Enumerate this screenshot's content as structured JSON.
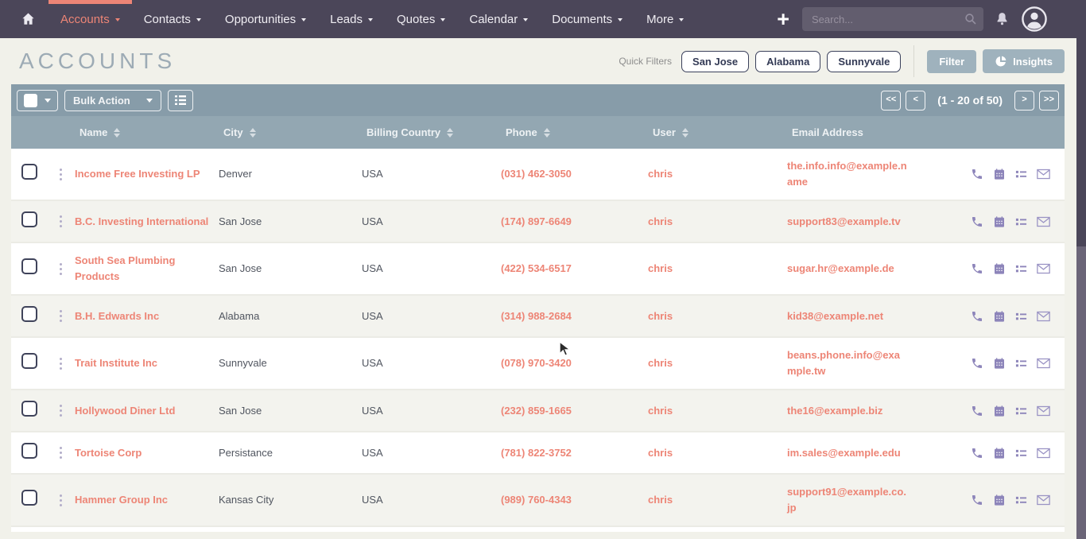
{
  "colors": {
    "accent": "#ed8576",
    "nav_bg": "#4b4659",
    "toolbar_bg": "#879ca9",
    "header_bg": "#93a7b2",
    "button_bg": "#9fb2bd",
    "icon_purple": "#8d85ba",
    "page_bg": "#f1f1ea",
    "row_alt": "#f3f3ee",
    "dark_text": "#50555f",
    "scroll_thumb": "#6b6578"
  },
  "nav": {
    "items": [
      {
        "label": "Accounts",
        "active": true
      },
      {
        "label": "Contacts",
        "active": false
      },
      {
        "label": "Opportunities",
        "active": false
      },
      {
        "label": "Leads",
        "active": false
      },
      {
        "label": "Quotes",
        "active": false
      },
      {
        "label": "Calendar",
        "active": false
      },
      {
        "label": "Documents",
        "active": false
      },
      {
        "label": "More",
        "active": false
      }
    ],
    "plus_label": "+",
    "search": {
      "placeholder": "Search..."
    },
    "icons": [
      "home-icon",
      "search-icon",
      "bell-icon",
      "user-avatar-icon"
    ]
  },
  "header": {
    "title": "ACCOUNTS",
    "quick_filters_label": "Quick Filters",
    "quick_filters": [
      "San Jose",
      "Alabama",
      "Sunnyvale"
    ],
    "filter_label": "Filter",
    "insights_label": "Insights",
    "insights_icon": "pie-chart-icon"
  },
  "toolbar": {
    "bulk_action_label": "Bulk Action",
    "columns_icon": "column-chooser-icon",
    "pagination": {
      "first": "<<",
      "prev": "<",
      "label": "(1 - 20 of 50)",
      "next": ">",
      "last": ">>"
    }
  },
  "table": {
    "columns": [
      {
        "label": "Name",
        "sortable": true
      },
      {
        "label": "City",
        "sortable": true
      },
      {
        "label": "Billing Country",
        "sortable": true
      },
      {
        "label": "Phone",
        "sortable": true
      },
      {
        "label": "User",
        "sortable": true
      },
      {
        "label": "Email Address",
        "sortable": false
      }
    ],
    "row_action_icons": [
      "phone-icon",
      "calendar-icon",
      "tasks-icon",
      "email-icon"
    ],
    "rows": [
      {
        "name": "Income Free Investing LP",
        "city": "Denver",
        "country": "USA",
        "phone": "(031) 462-3050",
        "user": "chris",
        "email": "the.info.info@example.name"
      },
      {
        "name": "B.C. Investing International",
        "city": "San Jose",
        "country": "USA",
        "phone": "(174) 897-6649",
        "user": "chris",
        "email": "support83@example.tv"
      },
      {
        "name": "South Sea Plumbing Products",
        "city": "San Jose",
        "country": "USA",
        "phone": "(422) 534-6517",
        "user": "chris",
        "email": "sugar.hr@example.de"
      },
      {
        "name": "B.H. Edwards Inc",
        "city": "Alabama",
        "country": "USA",
        "phone": "(314) 988-2684",
        "user": "chris",
        "email": "kid38@example.net"
      },
      {
        "name": "Trait Institute Inc",
        "city": "Sunnyvale",
        "country": "USA",
        "phone": "(078) 970-3420",
        "user": "chris",
        "email": "beans.phone.info@example.tw"
      },
      {
        "name": "Hollywood Diner Ltd",
        "city": "San Jose",
        "country": "USA",
        "phone": "(232) 859-1665",
        "user": "chris",
        "email": "the16@example.biz"
      },
      {
        "name": "Tortoise Corp",
        "city": "Persistance",
        "country": "USA",
        "phone": "(781) 822-3752",
        "user": "chris",
        "email": "im.sales@example.edu"
      },
      {
        "name": "Hammer Group Inc",
        "city": "Kansas City",
        "country": "USA",
        "phone": "(989) 760-4343",
        "user": "chris",
        "email": "support91@example.co.jp"
      }
    ]
  }
}
